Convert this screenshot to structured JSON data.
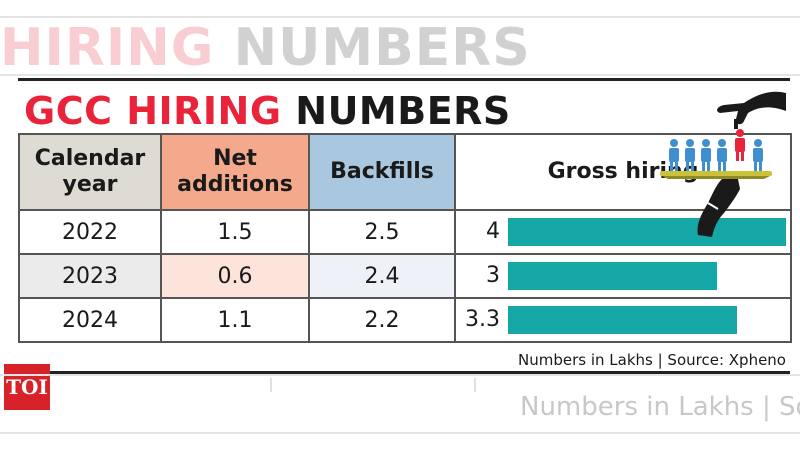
{
  "background_header": {
    "title_red": "HIRING",
    "title_dark": "NUMBERS"
  },
  "title": {
    "red": "GCC HIRING",
    "dark": "NUMBERS"
  },
  "chart_data": {
    "type": "table",
    "title": "GCC HIRING NUMBERS",
    "columns": [
      "Calendar year",
      "Net additions",
      "Backfills",
      "Gross hiring"
    ],
    "rows": [
      {
        "year": "2022",
        "net_additions": "1.5",
        "backfills": "2.5",
        "gross_hiring": "4"
      },
      {
        "year": "2023",
        "net_additions": "0.6",
        "backfills": "2.4",
        "gross_hiring": "3"
      },
      {
        "year": "2024",
        "net_additions": "1.1",
        "backfills": "2.2",
        "gross_hiring": "3.3"
      }
    ],
    "gross_bar_max": 4,
    "colors": {
      "net_header": "#f4a98c",
      "backfills_header": "#a9c7df",
      "year_header": "#dddbd2",
      "bar": "#14a7a5",
      "title_red": "#e8233a"
    }
  },
  "source_note": "Numbers in Lakhs | Source: Xpheno",
  "logo": {
    "text": "TOI"
  },
  "background_source_fragment": "Numbers in Lakhs | So"
}
